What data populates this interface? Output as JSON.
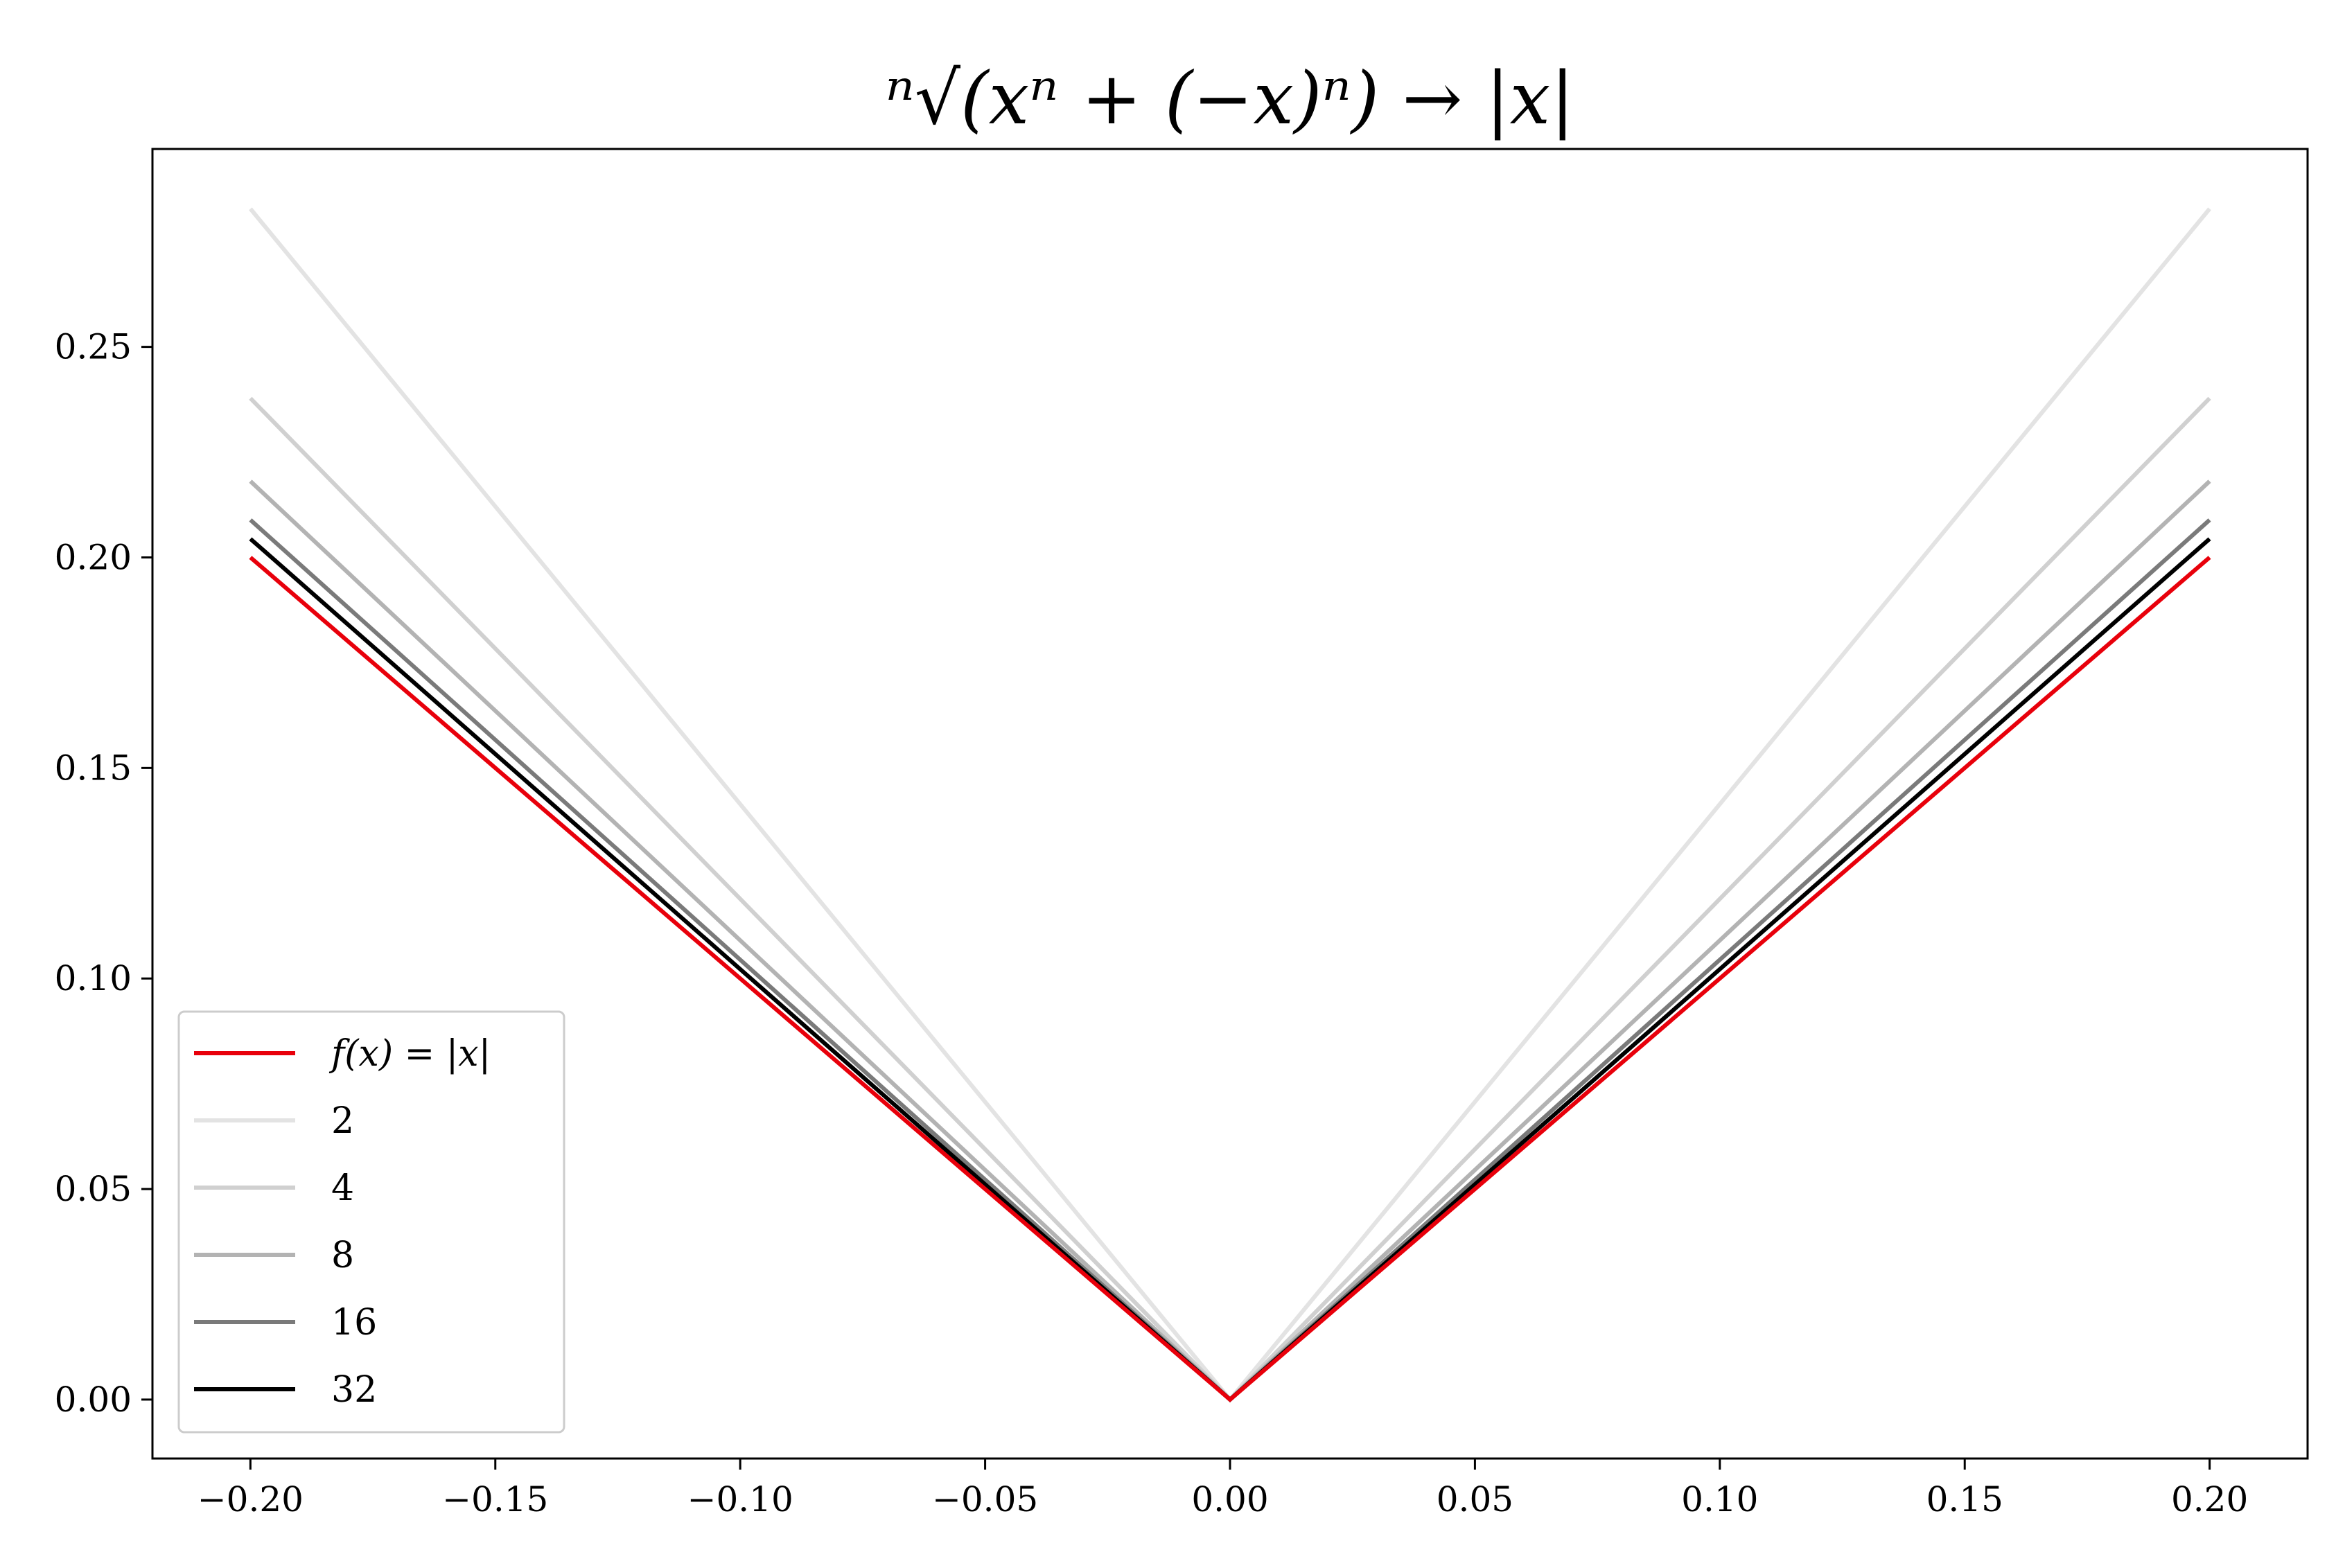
{
  "chart_data": {
    "type": "line",
    "title": "ⁿ√(xⁿ + (−x)ⁿ) → |x|",
    "xlabel": "",
    "ylabel": "",
    "xlim": [
      -0.22,
      0.22
    ],
    "ylim": [
      -0.014,
      0.297
    ],
    "grid": false,
    "legend_position": "lower-left",
    "x": [
      -0.2,
      0.0,
      0.2
    ],
    "xticks": [
      -0.2,
      -0.15,
      -0.1,
      -0.05,
      0.0,
      0.05,
      0.1,
      0.15,
      0.2
    ],
    "xtick_labels": [
      "−0.20",
      "−0.15",
      "−0.10",
      "−0.05",
      "0.00",
      "0.05",
      "0.10",
      "0.15",
      "0.20"
    ],
    "yticks": [
      0.0,
      0.05,
      0.1,
      0.15,
      0.2,
      0.25
    ],
    "ytick_labels": [
      "0.00",
      "0.05",
      "0.10",
      "0.15",
      "0.20",
      "0.25"
    ],
    "series": [
      {
        "name": "f(x) = |x|",
        "color": "#e8000b",
        "values": [
          0.2,
          0.0,
          0.2
        ]
      },
      {
        "name": "2",
        "color": "#e3e3e3",
        "values": [
          0.2828,
          0.0,
          0.2828
        ]
      },
      {
        "name": "4",
        "color": "#d0d0d0",
        "values": [
          0.2378,
          0.0,
          0.2378
        ]
      },
      {
        "name": "8",
        "color": "#b3b3b3",
        "values": [
          0.2181,
          0.0,
          0.2181
        ]
      },
      {
        "name": "16",
        "color": "#7a7a7a",
        "values": [
          0.2089,
          0.0,
          0.2089
        ]
      },
      {
        "name": "32",
        "color": "#000000",
        "values": [
          0.2044,
          0.0,
          0.2044
        ]
      }
    ]
  }
}
